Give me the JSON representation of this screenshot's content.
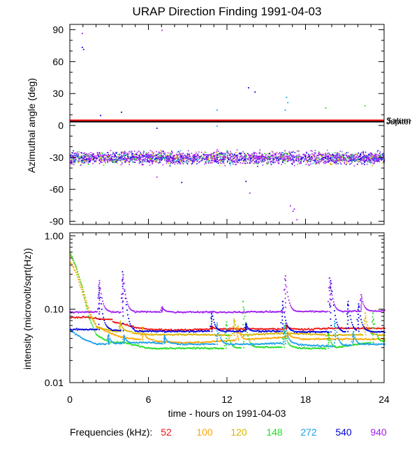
{
  "chart_data": {
    "type": "scatter",
    "title": "URAP Direction Finding  1991-04-03",
    "xlabel": "time - hours on 1991-04-03",
    "xlim": [
      0,
      24
    ],
    "xticks": [
      "0",
      "6",
      "12",
      "18",
      "24"
    ],
    "legend_label": "Frequencies (kHz):",
    "frequencies": [
      {
        "name": "52",
        "color": "#ee1111"
      },
      {
        "name": "100",
        "color": "#ffa500"
      },
      {
        "name": "120",
        "color": "#d8b400"
      },
      {
        "name": "148",
        "color": "#22dd22"
      },
      {
        "name": "272",
        "color": "#1aa0e6"
      },
      {
        "name": "540",
        "color": "#0000dd"
      },
      {
        "name": "940",
        "color": "#a020f0"
      }
    ],
    "panels": [
      {
        "id": "azimuth",
        "ylabel": "Azimuthal angle (deg)",
        "ylim": [
          -93,
          95
        ],
        "yticks": [
          "90",
          "60",
          "30",
          "0",
          "-30",
          "-60",
          "-90"
        ],
        "reference_lines": [
          {
            "name": "Saturn",
            "value": 4.5,
            "color": "#ee1111"
          },
          {
            "name": "Jupiter",
            "value": 3.5,
            "color": "#000000"
          }
        ],
        "band": {
          "center": -30,
          "spread": 7,
          "dominant_series": "940"
        },
        "outliers": [
          {
            "series": "940",
            "x": 0.9,
            "y": 87
          },
          {
            "series": "540",
            "x": 0.9,
            "y": 74
          },
          {
            "series": "540",
            "x": 1.0,
            "y": 72
          },
          {
            "series": "540",
            "x": 2.3,
            "y": 10
          },
          {
            "series": "540",
            "x": 3.9,
            "y": 13
          },
          {
            "series": "940",
            "x": 7.0,
            "y": 90
          },
          {
            "series": "272",
            "x": 11.2,
            "y": 15
          },
          {
            "series": "272",
            "x": 11.2,
            "y": 0
          },
          {
            "series": "540",
            "x": 13.6,
            "y": 36
          },
          {
            "series": "540",
            "x": 14.1,
            "y": 32
          },
          {
            "series": "940",
            "x": 13.7,
            "y": -63
          },
          {
            "series": "940",
            "x": 6.6,
            "y": -48
          },
          {
            "series": "540",
            "x": 8.5,
            "y": -53
          },
          {
            "series": "272",
            "x": 16.5,
            "y": 27
          },
          {
            "series": "272",
            "x": 16.6,
            "y": 22
          },
          {
            "series": "272",
            "x": 16.4,
            "y": 15
          },
          {
            "series": "940",
            "x": 16.8,
            "y": -75
          },
          {
            "series": "940",
            "x": 17.0,
            "y": -80
          },
          {
            "series": "940",
            "x": 17.3,
            "y": -88
          },
          {
            "series": "940",
            "x": 17.1,
            "y": -78
          },
          {
            "series": "148",
            "x": 19.5,
            "y": 17
          },
          {
            "series": "148",
            "x": 22.5,
            "y": 19
          },
          {
            "series": "940",
            "x": 21.8,
            "y": 5
          },
          {
            "series": "148",
            "x": 20.2,
            "y": -25
          },
          {
            "series": "540",
            "x": 6.6,
            "y": -2
          },
          {
            "series": "540",
            "x": 13.4,
            "y": -52
          }
        ]
      },
      {
        "id": "intensity",
        "ylabel": "intensity (microvolt/sqrt(Hz))",
        "scale": "log",
        "ylim": [
          0.01,
          1.1
        ],
        "yticks": [
          "1.00",
          "0.10",
          "0.01"
        ],
        "series": [
          {
            "name": "52",
            "points": [
              [
                0,
                0.078
              ],
              [
                1,
                0.08
              ],
              [
                2,
                0.076
              ],
              [
                3,
                0.07
              ],
              [
                4,
                0.064
              ],
              [
                5,
                0.058
              ],
              [
                6,
                0.054
              ],
              [
                8,
                0.053
              ],
              [
                10,
                0.054
              ],
              [
                12,
                0.055
              ],
              [
                14,
                0.055
              ],
              [
                16,
                0.055
              ],
              [
                18,
                0.054
              ],
              [
                20,
                0.056
              ],
              [
                22,
                0.056
              ],
              [
                24,
                0.056
              ]
            ],
            "spikes": [
              [
                2.3,
                0.075
              ],
              [
                10.8,
                0.06
              ],
              [
                16.5,
                0.062
              ]
            ]
          },
          {
            "name": "100",
            "points": [
              [
                0,
                0.45
              ],
              [
                0.5,
                0.3
              ],
              [
                1,
                0.15
              ],
              [
                1.5,
                0.085
              ],
              [
                2,
                0.06
              ],
              [
                3,
                0.048
              ],
              [
                4,
                0.042
              ],
              [
                6,
                0.038
              ],
              [
                8,
                0.036
              ],
              [
                10,
                0.036
              ],
              [
                12,
                0.038
              ],
              [
                14,
                0.04
              ],
              [
                16,
                0.042
              ],
              [
                18,
                0.04
              ],
              [
                20,
                0.04
              ],
              [
                22,
                0.04
              ],
              [
                24,
                0.04
              ]
            ],
            "spikes": [
              [
                5.5,
                0.058
              ],
              [
                12.8,
                0.06
              ],
              [
                16.6,
                0.05
              ]
            ]
          },
          {
            "name": "120",
            "points": [
              [
                0,
                0.55
              ],
              [
                0.5,
                0.35
              ],
              [
                1,
                0.18
              ],
              [
                1.5,
                0.09
              ],
              [
                2,
                0.058
              ],
              [
                3,
                0.052
              ],
              [
                4,
                0.05
              ],
              [
                6,
                0.046
              ],
              [
                8,
                0.046
              ],
              [
                10,
                0.046
              ],
              [
                12,
                0.045
              ],
              [
                14,
                0.046
              ],
              [
                16,
                0.048
              ],
              [
                18,
                0.047
              ],
              [
                20,
                0.045
              ],
              [
                22,
                0.046
              ],
              [
                24,
                0.045
              ]
            ],
            "spikes": [
              [
                3.8,
                0.07
              ],
              [
                12.5,
                0.075
              ],
              [
                22.5,
                0.09
              ]
            ]
          },
          {
            "name": "148",
            "points": [
              [
                0,
                0.6
              ],
              [
                0.4,
                0.4
              ],
              [
                0.9,
                0.2
              ],
              [
                1.4,
                0.08
              ],
              [
                2,
                0.045
              ],
              [
                3,
                0.036
              ],
              [
                4,
                0.036
              ],
              [
                6,
                0.03
              ],
              [
                8,
                0.03
              ],
              [
                10,
                0.03
              ],
              [
                12,
                0.03
              ],
              [
                14,
                0.031
              ],
              [
                16,
                0.031
              ],
              [
                18,
                0.03
              ],
              [
                20,
                0.03
              ],
              [
                22,
                0.034
              ],
              [
                24,
                0.038
              ]
            ],
            "spikes": [
              [
                11.9,
                0.068
              ],
              [
                13.2,
                0.13
              ],
              [
                16.3,
                0.06
              ],
              [
                19.7,
                0.05
              ],
              [
                23.1,
                0.09
              ]
            ]
          },
          {
            "name": "272",
            "points": [
              [
                0,
                0.052
              ],
              [
                1,
                0.04
              ],
              [
                2,
                0.034
              ],
              [
                3,
                0.034
              ],
              [
                4,
                0.035
              ],
              [
                6,
                0.036
              ],
              [
                8,
                0.034
              ],
              [
                10,
                0.034
              ],
              [
                12,
                0.034
              ],
              [
                14,
                0.034
              ],
              [
                16,
                0.035
              ],
              [
                18,
                0.033
              ],
              [
                20,
                0.032
              ],
              [
                22,
                0.034
              ],
              [
                24,
                0.034
              ]
            ],
            "spikes": [
              [
                2.9,
                0.046
              ],
              [
                4.1,
                0.045
              ],
              [
                7.2,
                0.044
              ],
              [
                11.2,
                0.066
              ],
              [
                16.4,
                0.065
              ],
              [
                20.2,
                0.07
              ],
              [
                21.6,
                0.05
              ]
            ]
          },
          {
            "name": "540",
            "points": [
              [
                0,
                0.054
              ],
              [
                2,
                0.054
              ],
              [
                4,
                0.052
              ],
              [
                6,
                0.051
              ],
              [
                8,
                0.051
              ],
              [
                10,
                0.051
              ],
              [
                12,
                0.051
              ],
              [
                14,
                0.051
              ],
              [
                16,
                0.051
              ],
              [
                18,
                0.05
              ],
              [
                20,
                0.05
              ],
              [
                22,
                0.051
              ],
              [
                24,
                0.05
              ]
            ],
            "spikes": [
              [
                2.2,
                0.2
              ],
              [
                4.0,
                0.33
              ],
              [
                10.8,
                0.095
              ],
              [
                13.4,
                0.065
              ],
              [
                16.2,
                0.13
              ],
              [
                19.9,
                0.25
              ],
              [
                21.2,
                0.13
              ],
              [
                22.0,
                0.12
              ]
            ]
          },
          {
            "name": "940",
            "points": [
              [
                0,
                0.093
              ],
              [
                2,
                0.094
              ],
              [
                4,
                0.094
              ],
              [
                6,
                0.094
              ],
              [
                8,
                0.093
              ],
              [
                10,
                0.093
              ],
              [
                12,
                0.093
              ],
              [
                14,
                0.094
              ],
              [
                16,
                0.094
              ],
              [
                18,
                0.095
              ],
              [
                20,
                0.095
              ],
              [
                22,
                0.096
              ],
              [
                24,
                0.097
              ]
            ],
            "spikes": [
              [
                2.2,
                0.25
              ],
              [
                4.0,
                0.3
              ],
              [
                7.0,
                0.11
              ],
              [
                16.4,
                0.29
              ],
              [
                19.8,
                0.27
              ],
              [
                22.2,
                0.16
              ]
            ]
          }
        ]
      }
    ]
  }
}
